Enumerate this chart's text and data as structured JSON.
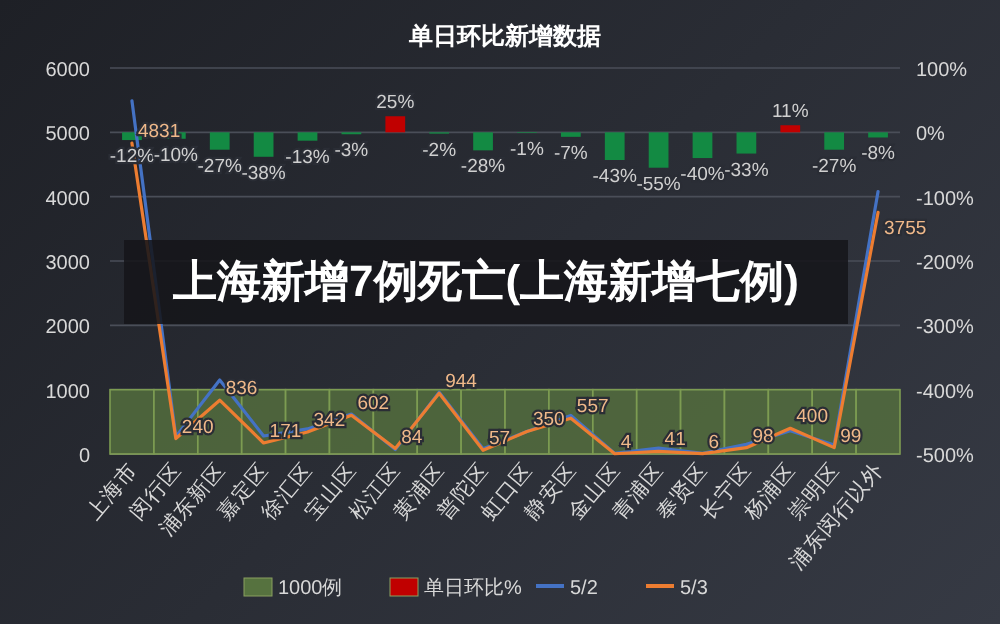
{
  "chart_data": {
    "type": "bar",
    "title": "单日环比新增数据",
    "categories": [
      "上海市",
      "闵行区",
      "浦东新区",
      "嘉定区",
      "徐汇区",
      "宝山区",
      "松江区",
      "黄浦区",
      "普陀区",
      "虹口区",
      "静安区",
      "金山区",
      "青浦区",
      "奉贤区",
      "长宁区",
      "杨浦区",
      "崇明区",
      "浦东闵行以外"
    ],
    "series": [
      {
        "name": "1000例",
        "color": "#56723f",
        "values": [
          1000,
          1000,
          1000,
          1000,
          1000,
          1000,
          1000,
          1000,
          1000,
          1000,
          1000,
          1000,
          1000,
          1000,
          1000,
          1000,
          1000,
          1000
        ]
      },
      {
        "name": "单日环比%",
        "type": "bar",
        "axis": "y2",
        "color": "#c00000",
        "colors": [
          "#138a43",
          "#138a43",
          "#138a43",
          "#138a43",
          "#138a43",
          "#138a43",
          "#c00000",
          "#138a43",
          "#138a43",
          "#138a43",
          "#138a43",
          "#138a43",
          "#138a43",
          "#138a43",
          "#138a43",
          "#c00000",
          "#138a43",
          "#138a43"
        ],
        "values": [
          -12,
          -10,
          -27,
          -38,
          -13,
          -3,
          25,
          -2,
          -28,
          -1,
          -7,
          -43,
          -55,
          -40,
          -33,
          11,
          -27,
          -8
        ],
        "value_labels": [
          "-12%",
          "-10%",
          "-27%",
          "-38%",
          "-13%",
          "-3%",
          "25%",
          "-2%",
          "-28%",
          "-1%",
          "-7%",
          "-43%",
          "-55%",
          "-40%",
          "-33%",
          "11%",
          "-27%",
          "-8%"
        ]
      },
      {
        "name": "5/2",
        "type": "line",
        "color": "#4472c4",
        "values": [
          5490,
          270,
          1150,
          280,
          390,
          620,
          70,
          960,
          80,
          350,
          600,
          10,
          90,
          10,
          150,
          360,
          140,
          4080
        ]
      },
      {
        "name": "5/3",
        "type": "line",
        "color": "#ed7d31",
        "values": [
          4831,
          240,
          836,
          171,
          342,
          602,
          84,
          944,
          57,
          350,
          557,
          4,
          41,
          6,
          98,
          400,
          99,
          3755
        ],
        "value_labels": [
          "4831",
          "240",
          "836",
          "171",
          "342",
          "602",
          "84",
          "944",
          "57",
          "350",
          "557",
          "4",
          "41",
          "6",
          "98",
          "400",
          "99",
          "3755"
        ]
      }
    ],
    "ylim": [
      0,
      6000
    ],
    "yticks": [
      0,
      1000,
      2000,
      3000,
      4000,
      5000,
      6000
    ],
    "y2lim": [
      -500,
      100
    ],
    "y2ticks": [
      {
        "value": -500,
        "label": "-500%"
      },
      {
        "value": -400,
        "label": "-400%"
      },
      {
        "value": -300,
        "label": "-300%"
      },
      {
        "value": -200,
        "label": "-200%"
      },
      {
        "value": -100,
        "label": "-100%"
      },
      {
        "value": 0,
        "label": "0%"
      },
      {
        "value": 100,
        "label": "100%"
      }
    ],
    "grid": "y",
    "legend": "bottom",
    "annotations": [
      "上海新增7例死亡(上海新增七例)"
    ]
  }
}
